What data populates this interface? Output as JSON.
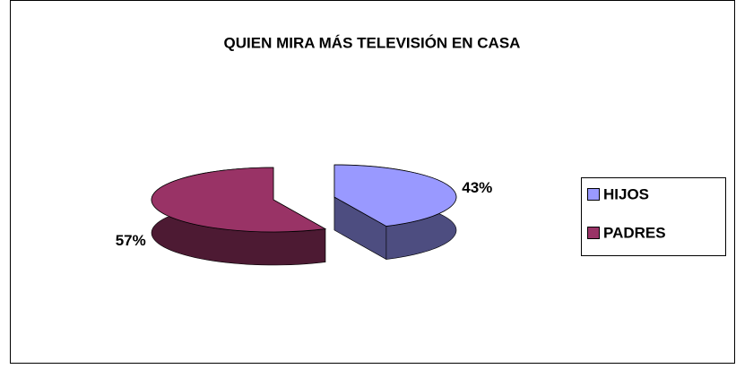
{
  "chart_data": {
    "type": "pie",
    "title": "QUIEN MIRA MÁS TELEVISIÓN EN CASA",
    "categories": [
      "HIJOS",
      "PADRES"
    ],
    "values": [
      43,
      57
    ],
    "value_labels": [
      "43%",
      "57%"
    ],
    "colors": [
      "#9999ff",
      "#993366"
    ],
    "legend": "right"
  }
}
